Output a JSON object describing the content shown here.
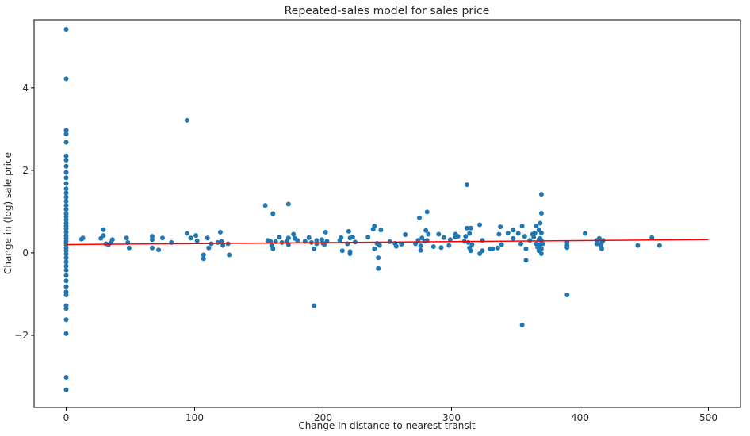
{
  "chart_data": {
    "type": "scatter",
    "title": "Repeated-sales model for sales price",
    "xlabel": "Change In distance to nearest transit",
    "ylabel": "Change in (log) sale price",
    "xlim": [
      -25,
      525
    ],
    "ylim": [
      -3.75,
      5.65
    ],
    "xticks": [
      0,
      100,
      200,
      300,
      400,
      500
    ],
    "yticks": [
      -2,
      0,
      2,
      4
    ],
    "grid": false,
    "point_color": "#1f77b4",
    "line_color": "#ff0000",
    "series": [
      {
        "type": "scatter",
        "points": [
          [
            0,
            5.42
          ],
          [
            0,
            4.22
          ],
          [
            0,
            2.97
          ],
          [
            0,
            2.88
          ],
          [
            0,
            2.68
          ],
          [
            0,
            2.35
          ],
          [
            0,
            2.25
          ],
          [
            0,
            2.1
          ],
          [
            0,
            1.95
          ],
          [
            0,
            1.82
          ],
          [
            0,
            1.68
          ],
          [
            0,
            1.55
          ],
          [
            0,
            1.45
          ],
          [
            0,
            1.35
          ],
          [
            0,
            1.25
          ],
          [
            0,
            1.15
          ],
          [
            0,
            1.05
          ],
          [
            0,
            0.95
          ],
          [
            0,
            0.88
          ],
          [
            0,
            0.8
          ],
          [
            0,
            0.72
          ],
          [
            0,
            0.65
          ],
          [
            0,
            0.58
          ],
          [
            0,
            0.5
          ],
          [
            0,
            0.42
          ],
          [
            0,
            0.35
          ],
          [
            0,
            0.28
          ],
          [
            0,
            0.2
          ],
          [
            0,
            0.12
          ],
          [
            0,
            0.05
          ],
          [
            0,
            -0.03
          ],
          [
            0,
            -0.12
          ],
          [
            0,
            -0.22
          ],
          [
            0,
            -0.32
          ],
          [
            0,
            -0.42
          ],
          [
            0,
            -0.55
          ],
          [
            0,
            -0.68
          ],
          [
            0,
            -0.82
          ],
          [
            0,
            -0.95
          ],
          [
            0,
            -1.02
          ],
          [
            0,
            -1.28
          ],
          [
            0,
            -1.35
          ],
          [
            0,
            -1.62
          ],
          [
            0,
            -1.96
          ],
          [
            0,
            -3.02
          ],
          [
            0,
            -3.32
          ],
          [
            12,
            0.33
          ],
          [
            13,
            0.36
          ],
          [
            27,
            0.35
          ],
          [
            29,
            0.56
          ],
          [
            29,
            0.42
          ],
          [
            31,
            0.22
          ],
          [
            33,
            0.2
          ],
          [
            35,
            0.25
          ],
          [
            36,
            0.32
          ],
          [
            47,
            0.36
          ],
          [
            48,
            0.25
          ],
          [
            49,
            0.12
          ],
          [
            67,
            0.4
          ],
          [
            67,
            0.32
          ],
          [
            67,
            0.12
          ],
          [
            72,
            0.07
          ],
          [
            75,
            0.36
          ],
          [
            82,
            0.25
          ],
          [
            94,
            3.21
          ],
          [
            94,
            0.47
          ],
          [
            97,
            0.36
          ],
          [
            101,
            0.42
          ],
          [
            102,
            0.29
          ],
          [
            107,
            -0.05
          ],
          [
            107,
            -0.14
          ],
          [
            110,
            0.36
          ],
          [
            111,
            0.12
          ],
          [
            113,
            0.22
          ],
          [
            118,
            0.25
          ],
          [
            120,
            0.5
          ],
          [
            121,
            0.28
          ],
          [
            122,
            0.18
          ],
          [
            126,
            0.22
          ],
          [
            127,
            -0.05
          ],
          [
            155,
            1.15
          ],
          [
            157,
            0.3
          ],
          [
            159,
            0.28
          ],
          [
            160,
            0.18
          ],
          [
            161,
            0.1
          ],
          [
            161,
            0.95
          ],
          [
            163,
            0.27
          ],
          [
            166,
            0.38
          ],
          [
            168,
            0.25
          ],
          [
            172,
            0.28
          ],
          [
            173,
            1.18
          ],
          [
            173,
            0.36
          ],
          [
            173,
            0.2
          ],
          [
            177,
            0.45
          ],
          [
            178,
            0.35
          ],
          [
            180,
            0.3
          ],
          [
            186,
            0.28
          ],
          [
            189,
            0.37
          ],
          [
            191,
            0.25
          ],
          [
            193,
            0.1
          ],
          [
            193,
            -1.28
          ],
          [
            195,
            0.3
          ],
          [
            195,
            0.22
          ],
          [
            199,
            0.32
          ],
          [
            200,
            0.23
          ],
          [
            201,
            0.2
          ],
          [
            202,
            0.5
          ],
          [
            203,
            0.28
          ],
          [
            213,
            0.3
          ],
          [
            214,
            0.37
          ],
          [
            215,
            0.05
          ],
          [
            219,
            0.22
          ],
          [
            220,
            0.52
          ],
          [
            221,
            -0.02
          ],
          [
            221,
            0.03
          ],
          [
            221,
            0.36
          ],
          [
            223,
            0.38
          ],
          [
            225,
            0.26
          ],
          [
            235,
            0.38
          ],
          [
            239,
            0.57
          ],
          [
            240,
            0.65
          ],
          [
            240,
            0.1
          ],
          [
            242,
            0.23
          ],
          [
            243,
            -0.12
          ],
          [
            243,
            -0.38
          ],
          [
            244,
            0.18
          ],
          [
            245,
            0.55
          ],
          [
            252,
            0.27
          ],
          [
            256,
            0.23
          ],
          [
            257,
            0.16
          ],
          [
            261,
            0.21
          ],
          [
            264,
            0.44
          ],
          [
            272,
            0.22
          ],
          [
            274,
            0.3
          ],
          [
            275,
            0.85
          ],
          [
            276,
            0.06
          ],
          [
            276,
            0.17
          ],
          [
            277,
            0.36
          ],
          [
            279,
            0.28
          ],
          [
            280,
            0.54
          ],
          [
            281,
            0.99
          ],
          [
            281,
            0.3
          ],
          [
            282,
            0.45
          ],
          [
            286,
            0.15
          ],
          [
            290,
            0.45
          ],
          [
            292,
            0.13
          ],
          [
            294,
            0.37
          ],
          [
            298,
            0.18
          ],
          [
            299,
            0.32
          ],
          [
            303,
            0.45
          ],
          [
            303,
            0.38
          ],
          [
            305,
            0.4
          ],
          [
            310,
            0.28
          ],
          [
            311,
            0.4
          ],
          [
            312,
            1.65
          ],
          [
            312,
            0.6
          ],
          [
            313,
            0.25
          ],
          [
            314,
            0.47
          ],
          [
            314,
            0.12
          ],
          [
            315,
            0.6
          ],
          [
            315,
            0.05
          ],
          [
            316,
            0.2
          ],
          [
            322,
            0.68
          ],
          [
            322,
            -0.02
          ],
          [
            324,
            0.3
          ],
          [
            324,
            0.05
          ],
          [
            330,
            0.1
          ],
          [
            332,
            0.1
          ],
          [
            336,
            0.12
          ],
          [
            337,
            0.45
          ],
          [
            338,
            0.63
          ],
          [
            339,
            0.2
          ],
          [
            344,
            0.48
          ],
          [
            348,
            0.55
          ],
          [
            348,
            0.35
          ],
          [
            352,
            0.47
          ],
          [
            354,
            0.22
          ],
          [
            355,
            -1.75
          ],
          [
            355,
            0.65
          ],
          [
            357,
            0.4
          ],
          [
            358,
            -0.18
          ],
          [
            358,
            0.1
          ],
          [
            361,
            0.3
          ],
          [
            363,
            0.45
          ],
          [
            364,
            0.38
          ],
          [
            365,
            0.48
          ],
          [
            366,
            0.22
          ],
          [
            366,
            0.65
          ],
          [
            367,
            0.14
          ],
          [
            368,
            0.32
          ],
          [
            368,
            0.05
          ],
          [
            368,
            0.55
          ],
          [
            369,
            0.72
          ],
          [
            369,
            0.35
          ],
          [
            369,
            0.2
          ],
          [
            370,
            1.42
          ],
          [
            370,
            0.96
          ],
          [
            370,
            0.48
          ],
          [
            370,
            0.3
          ],
          [
            370,
            0.1
          ],
          [
            370,
            -0.02
          ],
          [
            371,
            0.22
          ],
          [
            390,
            0.25
          ],
          [
            390,
            0.18
          ],
          [
            390,
            0.13
          ],
          [
            390,
            -1.02
          ],
          [
            404,
            0.47
          ],
          [
            413,
            0.3
          ],
          [
            413,
            0.22
          ],
          [
            415,
            0.35
          ],
          [
            416,
            0.18
          ],
          [
            417,
            0.1
          ],
          [
            417,
            0.25
          ],
          [
            418,
            0.3
          ],
          [
            445,
            0.18
          ],
          [
            456,
            0.37
          ],
          [
            462,
            0.18
          ]
        ]
      },
      {
        "type": "line",
        "points": [
          [
            0,
            0.2
          ],
          [
            500,
            0.32
          ]
        ]
      }
    ]
  }
}
